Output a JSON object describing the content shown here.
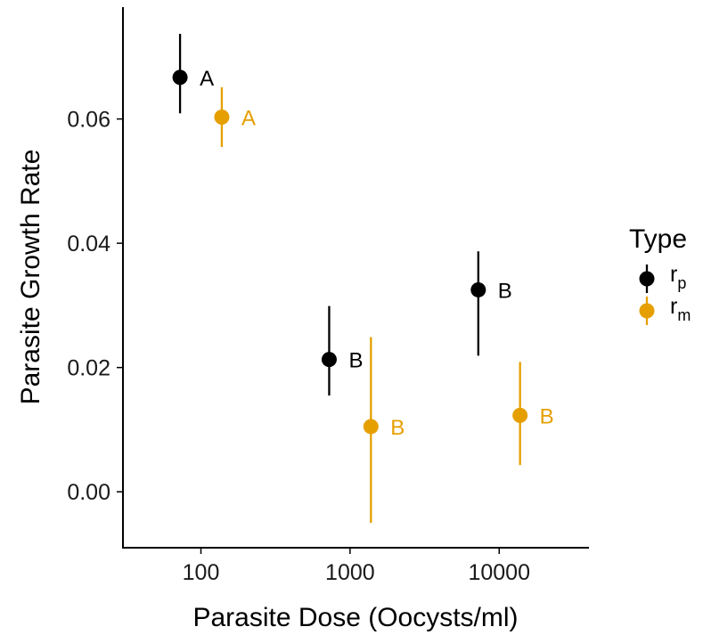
{
  "chart_data": {
    "type": "scatter",
    "xlabel": "Parasite Dose (Oocysts/ml)",
    "ylabel": "Parasite Growth Rate",
    "x_scale": "log10",
    "xlim": [
      30,
      40000
    ],
    "ylim": [
      -0.009,
      0.078
    ],
    "x_ticks": [
      {
        "value": 100,
        "label": "100"
      },
      {
        "value": 1000,
        "label": "1000"
      },
      {
        "value": 10000,
        "label": "10000"
      }
    ],
    "y_ticks": [
      {
        "value": 0.0,
        "label": "0.00"
      },
      {
        "value": 0.02,
        "label": "0.02"
      },
      {
        "value": 0.04,
        "label": "0.04"
      },
      {
        "value": 0.06,
        "label": "0.06"
      }
    ],
    "grid": false,
    "legend": {
      "title": "Type",
      "placement": "right",
      "entries": [
        {
          "base": "r",
          "subscript": "p",
          "color": "#000000"
        },
        {
          "base": "r",
          "subscript": "m",
          "color": "#E69F00"
        }
      ]
    },
    "series": [
      {
        "color": "#000000",
        "points": [
          {
            "x": 100,
            "y": 0.0667,
            "ymin": 0.0609,
            "ymax": 0.0737,
            "label": "A"
          },
          {
            "x": 1000,
            "y": 0.0213,
            "ymin": 0.0155,
            "ymax": 0.0299,
            "label": "B"
          },
          {
            "x": 10000,
            "y": 0.0325,
            "ymin": 0.0219,
            "ymax": 0.0387,
            "label": "B"
          }
        ]
      },
      {
        "color": "#E69F00",
        "points": [
          {
            "x": 100,
            "y": 0.0603,
            "ymin": 0.0555,
            "ymax": 0.0651,
            "label": "A"
          },
          {
            "x": 1000,
            "y": 0.0105,
            "ymin": -0.005,
            "ymax": 0.0249,
            "label": "B"
          },
          {
            "x": 10000,
            "y": 0.0123,
            "ymin": 0.0043,
            "ymax": 0.0209,
            "label": "B"
          }
        ]
      }
    ]
  }
}
